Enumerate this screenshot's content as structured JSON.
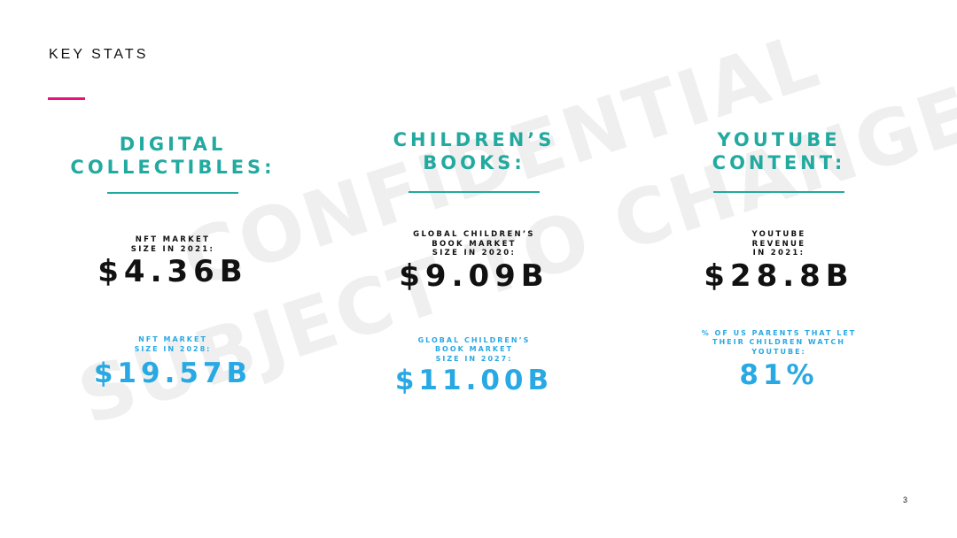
{
  "slide": {
    "title": "KEY STATS",
    "page_number": "3",
    "accent_color": "#e8127a",
    "heading_color": "#23aaa0",
    "projection_color": "#29a9e3"
  },
  "watermark": {
    "line1": "CONFIDENTIAL",
    "line2": "SUBJECT TO CHANGE"
  },
  "columns": [
    {
      "heading_line1": "DIGITAL",
      "heading_line2": "COLLECTIBLES:",
      "stat_label_line1": "NFT MARKET",
      "stat_label_line2": "SIZE IN 2021:",
      "stat_value": "$4.36B",
      "proj_label_line1": "NFT MARKET",
      "proj_label_line2": "SIZE IN 2028:",
      "proj_value": "$19.57B"
    },
    {
      "heading_line1": "CHILDREN’S",
      "heading_line2": "BOOKS:",
      "stat_label_line1": "GLOBAL CHILDREN’S",
      "stat_label_line2": "BOOK MARKET",
      "stat_label_line3": "SIZE IN 2020:",
      "stat_value": "$9.09B",
      "proj_label_line1": "GLOBAL CHILDREN’S",
      "proj_label_line2": "BOOK MARKET",
      "proj_label_line3": "SIZE IN 2027:",
      "proj_value": "$11.00B"
    },
    {
      "heading_line1": "YOUTUBE",
      "heading_line2": "CONTENT:",
      "stat_label_line1": "YOUTUBE",
      "stat_label_line2": "REVENUE",
      "stat_label_line3": "IN 2021:",
      "stat_value": "$28.8B",
      "proj_label_line1": "% OF US PARENTS THAT LET",
      "proj_label_line2": "THEIR CHILDREN WATCH",
      "proj_label_line3": "YOUTUBE:",
      "proj_value": "81%"
    }
  ]
}
